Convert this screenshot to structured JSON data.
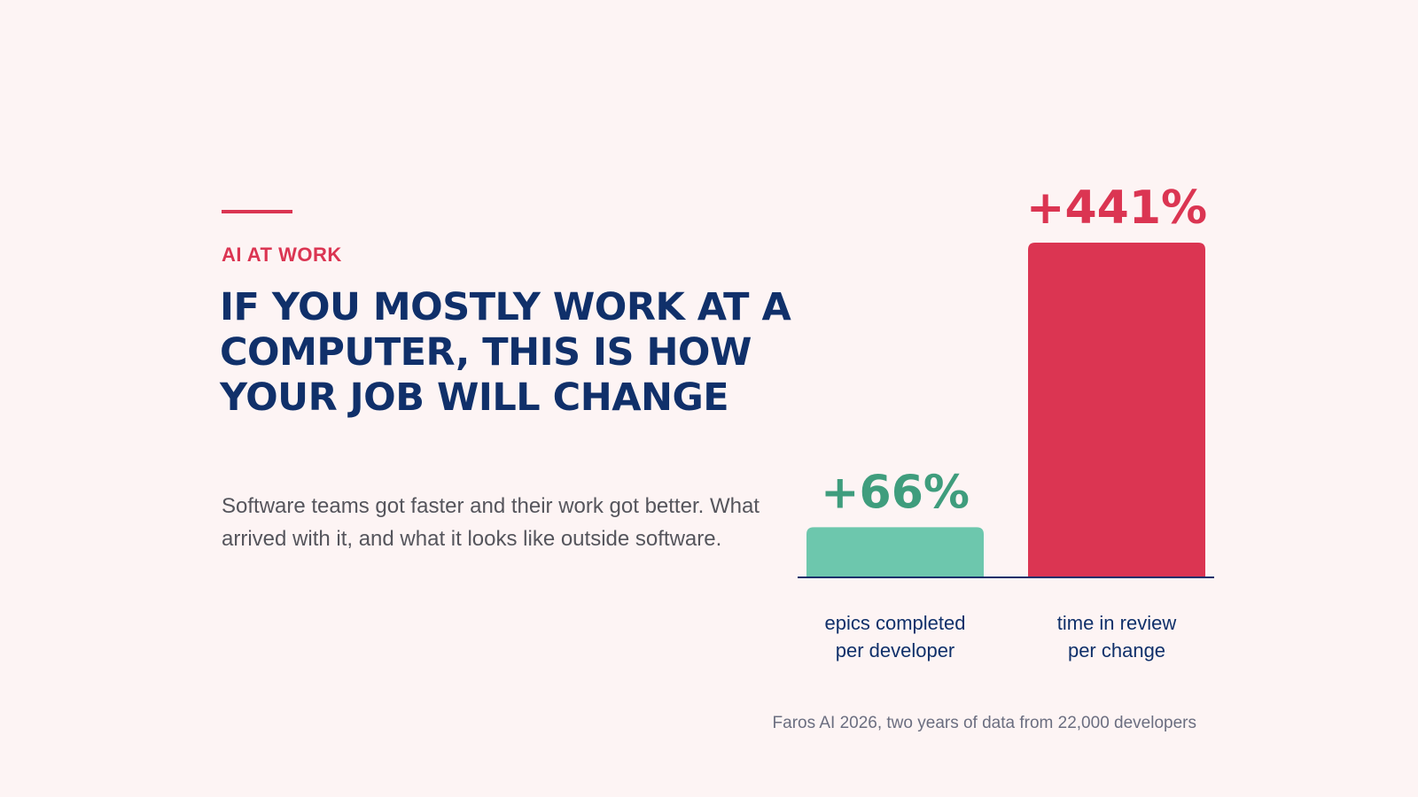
{
  "eyebrow": "AI AT WORK",
  "headline": "IF YOU MOSTLY WORK AT A COMPUTER, THIS IS HOW YOUR JOB WILL CHANGE",
  "body": "Software teams got faster and their work got better. What arrived with it, and what it looks like outside software.",
  "source": "Faros AI 2026, two years of data from 22,000 developers",
  "colors": {
    "background": "#fdf4f4",
    "accent": "#db3552",
    "navy": "#10306a",
    "green_bar": "#6dc7ad",
    "green_text": "#3f9d7d",
    "red_bar": "#db3552"
  },
  "chart_data": {
    "type": "bar",
    "categories": [
      [
        "epics completed",
        "per developer"
      ],
      [
        "time in review",
        "per change"
      ]
    ],
    "values": [
      66,
      441
    ],
    "value_labels": [
      "+66%",
      "+441%"
    ],
    "ylim": [
      0,
      441
    ],
    "grid": false,
    "title": "",
    "xlabel": "",
    "ylabel": ""
  }
}
